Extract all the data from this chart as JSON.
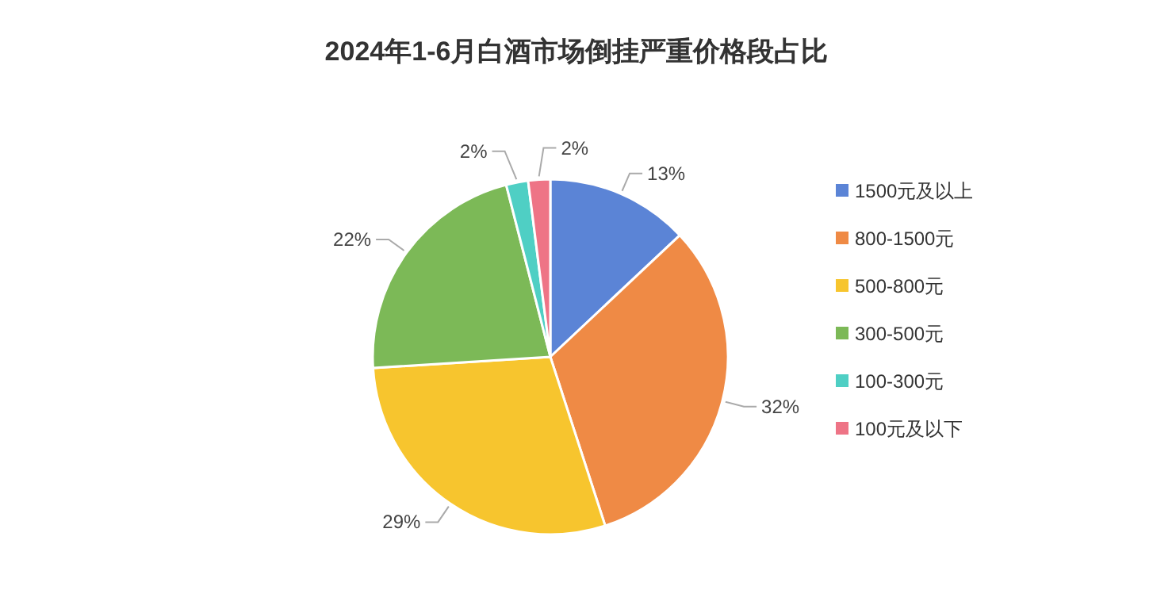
{
  "chart_data": {
    "type": "pie",
    "title": "2024年1-6月白酒市场倒挂严重价格段占比",
    "categories": [
      "1500元及以上",
      "800-1500元",
      "500-800元",
      "300-500元",
      "100-300元",
      "100元及以下"
    ],
    "values": [
      13,
      32,
      29,
      22,
      2,
      2
    ],
    "colors": [
      "#5b84d6",
      "#ef8a45",
      "#f7c52e",
      "#7cb957",
      "#4fcfc4",
      "#ee7486"
    ],
    "value_labels": [
      "13%",
      "32%",
      "29%",
      "22%",
      "2%",
      "2%"
    ],
    "legend": "right"
  }
}
